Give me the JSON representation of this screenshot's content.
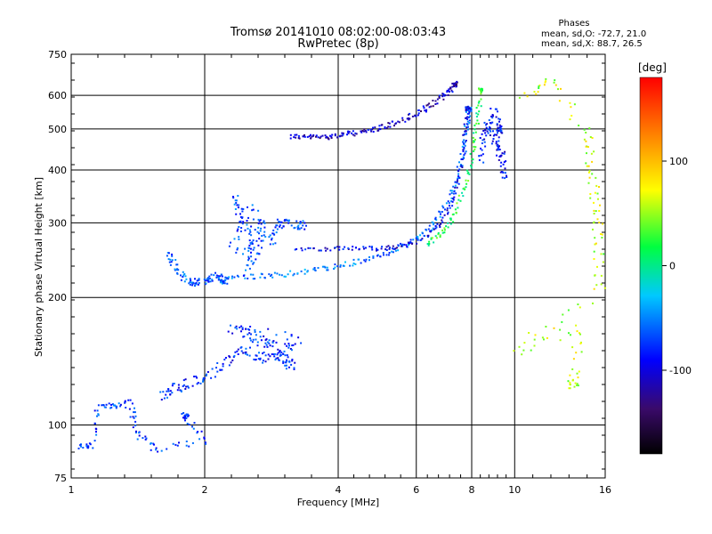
{
  "chart_data": {
    "type": "scatter",
    "title": "Tromsø 20141010 08:02:00-08:03:43",
    "subtitle": "RwPretec (8p)",
    "xlabel": "Frequency [MHz]",
    "ylabel": "Stationary phase Virtual Height [km]",
    "x_scale": "log2",
    "y_scale": "log",
    "xlim": [
      1,
      16
    ],
    "ylim": [
      75,
      750
    ],
    "x_ticks": [
      "1",
      "2",
      "4",
      "6",
      "8",
      "10",
      "16"
    ],
    "x_tick_values": [
      1,
      2,
      4,
      6,
      8,
      10,
      16
    ],
    "y_ticks": [
      "75",
      "100",
      "200",
      "300",
      "400",
      "500",
      "600",
      "750"
    ],
    "y_tick_values": [
      75,
      100,
      200,
      300,
      400,
      500,
      600,
      750
    ],
    "grid": true,
    "phase_stats": {
      "heading": "Phases",
      "line_o": "mean, sd,O: -72.7, 21.0",
      "line_x": "mean, sd,X:  88.7, 26.5"
    },
    "colorbar": {
      "label": "[deg]",
      "range": [
        -180,
        180
      ],
      "ticks": [
        "100",
        "0",
        "-100"
      ],
      "tick_values": [
        100,
        0,
        -100
      ]
    },
    "series": [
      {
        "phase": -115,
        "spread": 6,
        "points": [
          [
            3.1,
            483
          ],
          [
            3.4,
            480
          ],
          [
            3.7,
            481
          ],
          [
            4.0,
            485
          ],
          [
            4.3,
            490
          ],
          [
            4.7,
            498
          ],
          [
            5.1,
            510
          ],
          [
            5.6,
            528
          ],
          [
            6.1,
            550
          ],
          [
            6.6,
            580
          ],
          [
            7.0,
            610
          ],
          [
            7.3,
            640
          ]
        ]
      },
      {
        "phase": -60,
        "spread": 6,
        "points": [
          [
            2.2,
            225
          ],
          [
            2.6,
            225
          ],
          [
            3.0,
            228
          ],
          [
            3.5,
            233
          ],
          [
            4.0,
            238
          ],
          [
            4.6,
            246
          ],
          [
            5.2,
            257
          ],
          [
            5.8,
            270
          ],
          [
            6.4,
            292
          ],
          [
            6.9,
            325
          ],
          [
            7.3,
            370
          ],
          [
            7.6,
            430
          ],
          [
            7.75,
            500
          ],
          [
            7.85,
            560
          ]
        ]
      },
      {
        "phase": -100,
        "spread": 5,
        "points": [
          [
            3.2,
            262
          ],
          [
            3.8,
            262
          ],
          [
            4.4,
            262
          ],
          [
            5.0,
            262
          ],
          [
            5.6,
            265
          ],
          [
            6.2,
            278
          ],
          [
            6.8,
            300
          ],
          [
            7.2,
            340
          ],
          [
            7.5,
            400
          ],
          [
            7.7,
            480
          ],
          [
            7.8,
            560
          ]
        ]
      },
      {
        "phase": 20,
        "spread": 5,
        "points": [
          [
            6.3,
            268
          ],
          [
            6.8,
            285
          ],
          [
            7.3,
            315
          ],
          [
            7.7,
            370
          ],
          [
            8.0,
            440
          ],
          [
            8.2,
            520
          ],
          [
            8.35,
            620
          ]
        ]
      },
      {
        "phase": -75,
        "spread": 10,
        "points": [
          [
            2.3,
            260
          ],
          [
            2.4,
            300
          ],
          [
            2.35,
            350
          ],
          [
            2.5,
            280
          ],
          [
            2.6,
            240
          ],
          [
            2.7,
            310
          ],
          [
            2.45,
            230
          ],
          [
            2.55,
            330
          ],
          [
            2.8,
            270
          ],
          [
            2.9,
            300
          ],
          [
            3.0,
            300
          ],
          [
            3.3,
            298
          ]
        ]
      },
      {
        "phase": -70,
        "spread": 8,
        "points": [
          [
            1.65,
            260
          ],
          [
            1.7,
            235
          ],
          [
            1.8,
            222
          ],
          [
            1.9,
            218
          ],
          [
            2.0,
            220
          ],
          [
            2.1,
            228
          ],
          [
            2.2,
            220
          ]
        ]
      },
      {
        "phase": -85,
        "spread": 12,
        "points": [
          [
            1.6,
            118
          ],
          [
            1.7,
            122
          ],
          [
            1.8,
            127
          ],
          [
            2.0,
            130
          ],
          [
            2.2,
            140
          ],
          [
            2.4,
            150
          ],
          [
            2.6,
            147
          ],
          [
            2.8,
            143
          ],
          [
            3.0,
            150
          ],
          [
            3.2,
            160
          ],
          [
            2.3,
            170
          ],
          [
            2.5,
            165
          ],
          [
            2.7,
            158
          ],
          [
            2.9,
            152
          ],
          [
            3.1,
            140
          ]
        ]
      },
      {
        "phase": -80,
        "spread": 8,
        "points": [
          [
            1.05,
            90
          ],
          [
            1.1,
            89
          ],
          [
            1.15,
            110
          ],
          [
            1.25,
            112
          ],
          [
            1.35,
            113
          ],
          [
            1.4,
            96
          ],
          [
            1.55,
            88
          ],
          [
            2.0,
            92
          ],
          [
            1.8,
            106
          ]
        ]
      },
      {
        "phase": -95,
        "spread": 8,
        "points": [
          [
            8.3,
            420
          ],
          [
            8.5,
            480
          ],
          [
            8.7,
            520
          ],
          [
            9.0,
            470
          ],
          [
            9.3,
            430
          ],
          [
            9.5,
            380
          ],
          [
            8.9,
            560
          ],
          [
            9.2,
            500
          ]
        ]
      },
      {
        "phase": 60,
        "spread": 12,
        "points": [
          [
            10.5,
            600
          ],
          [
            12.2,
            650
          ],
          [
            14.5,
            480
          ],
          [
            14.8,
            400
          ],
          [
            15.2,
            330
          ],
          [
            15.4,
            280
          ],
          [
            15.5,
            210
          ],
          [
            10.0,
            150
          ],
          [
            14.0,
            170
          ],
          [
            13.5,
            125
          ]
        ]
      }
    ]
  }
}
